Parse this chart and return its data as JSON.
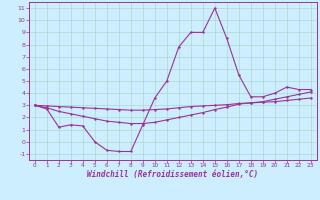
{
  "xlabel": "Windchill (Refroidissement éolien,°C)",
  "background_color": "#cceeff",
  "grid_color": "#aaddcc",
  "line_color": "#993399",
  "x_values": [
    0,
    1,
    2,
    3,
    4,
    5,
    6,
    7,
    8,
    9,
    10,
    11,
    12,
    13,
    14,
    15,
    16,
    17,
    18,
    19,
    20,
    21,
    22,
    23
  ],
  "y_main": [
    3.0,
    2.7,
    1.2,
    1.4,
    1.3,
    0.0,
    -0.7,
    -0.8,
    -0.8,
    1.4,
    3.6,
    5.0,
    7.8,
    9.0,
    9.0,
    11.0,
    8.5,
    5.5,
    3.7,
    3.7,
    4.0,
    4.5,
    4.3,
    4.3
  ],
  "y_line1": [
    3.0,
    2.95,
    2.9,
    2.85,
    2.8,
    2.75,
    2.7,
    2.65,
    2.6,
    2.6,
    2.65,
    2.7,
    2.8,
    2.9,
    2.95,
    3.0,
    3.05,
    3.15,
    3.2,
    3.25,
    3.3,
    3.4,
    3.5,
    3.6
  ],
  "y_line2": [
    3.0,
    2.8,
    2.5,
    2.3,
    2.1,
    1.9,
    1.7,
    1.6,
    1.5,
    1.5,
    1.6,
    1.8,
    2.0,
    2.2,
    2.4,
    2.65,
    2.85,
    3.1,
    3.2,
    3.3,
    3.5,
    3.7,
    3.9,
    4.1
  ],
  "ylim": [
    -1.5,
    11.5
  ],
  "xlim": [
    -0.5,
    23.5
  ],
  "yticks": [
    -1,
    0,
    1,
    2,
    3,
    4,
    5,
    6,
    7,
    8,
    9,
    10,
    11
  ],
  "xticks": [
    0,
    1,
    2,
    3,
    4,
    5,
    6,
    7,
    8,
    9,
    10,
    11,
    12,
    13,
    14,
    15,
    16,
    17,
    18,
    19,
    20,
    21,
    22,
    23
  ],
  "xtick_labels": [
    "0",
    "1",
    "2",
    "3",
    "4",
    "5",
    "6",
    "7",
    "8",
    "9",
    "10",
    "11",
    "12",
    "13",
    "14",
    "15",
    "16",
    "17",
    "18",
    "19",
    "20",
    "21",
    "22",
    "23"
  ]
}
